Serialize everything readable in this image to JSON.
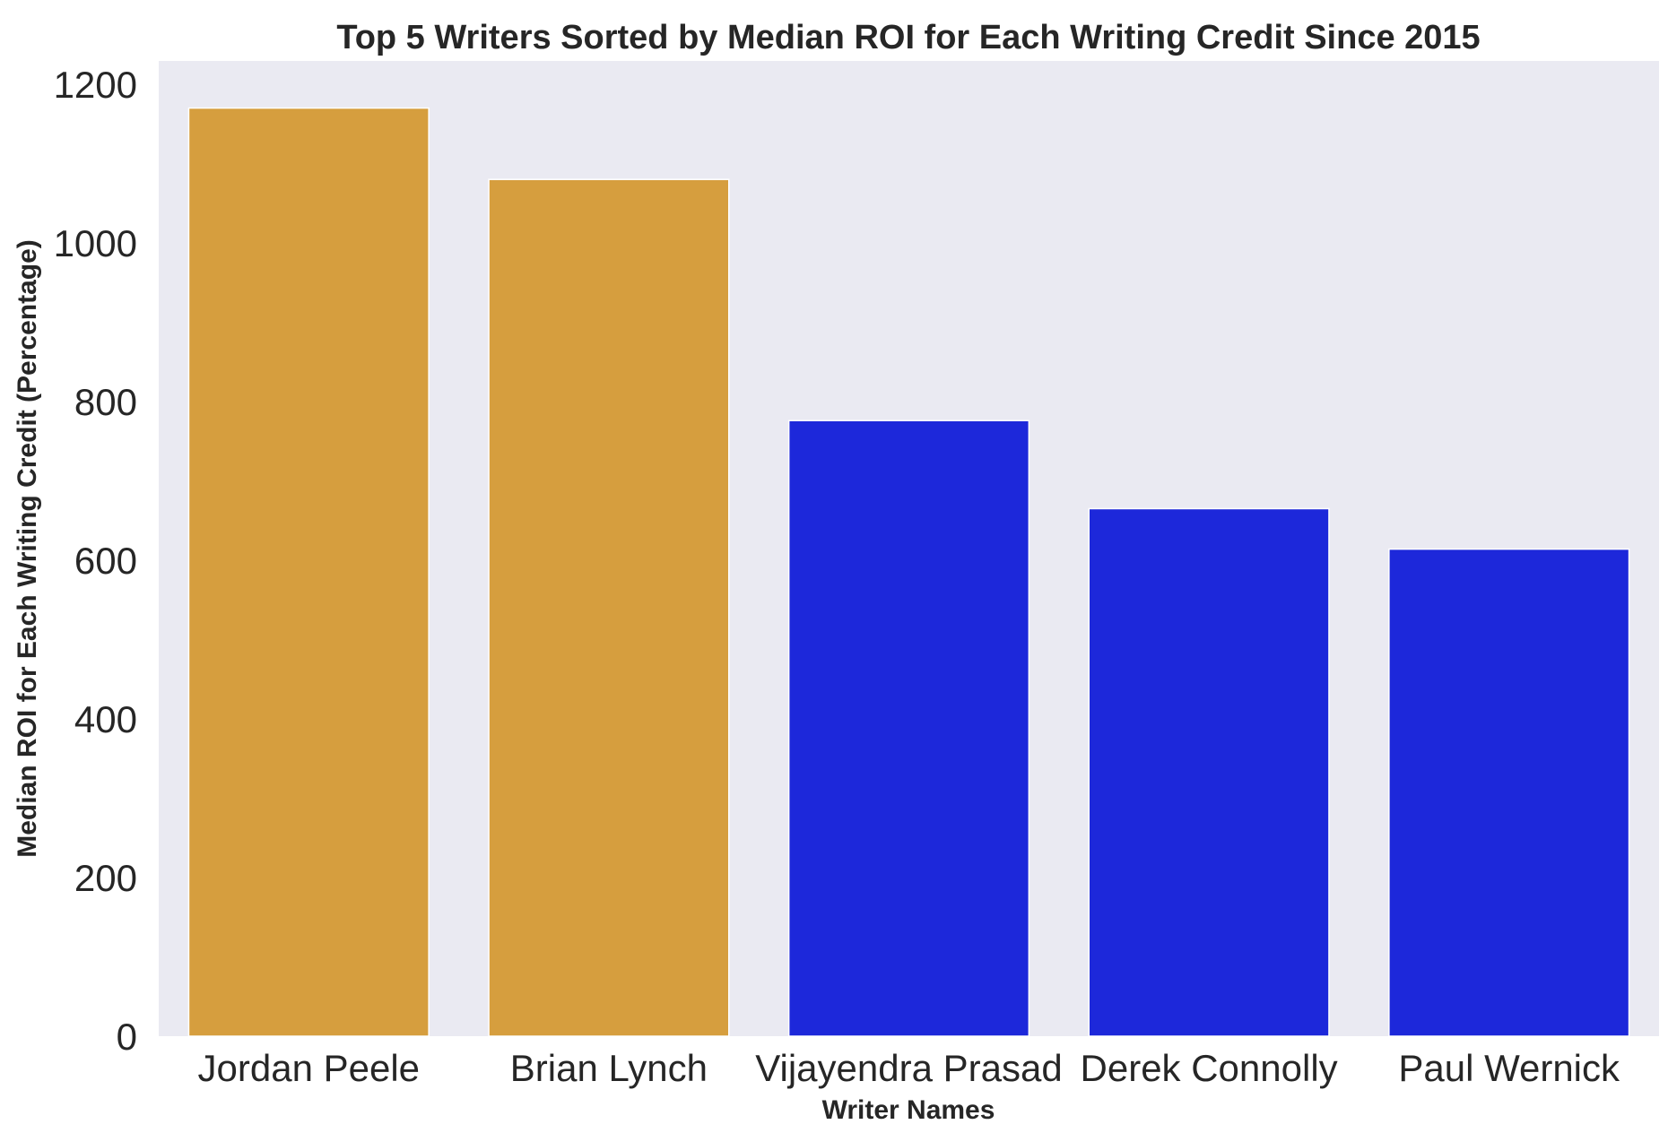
{
  "chart_data": {
    "type": "bar",
    "title": "Top 5 Writers Sorted by Median ROI for Each Writing Credit Since 2015",
    "xlabel": "Writer Names",
    "ylabel": "Median ROI for Each Writing Credit (Percentage)",
    "categories": [
      "Jordan Peele",
      "Brian Lynch",
      "Vijayendra Prasad",
      "Derek Connolly",
      "Paul Wernick"
    ],
    "values": [
      1170,
      1080,
      776,
      665,
      614
    ],
    "colors": [
      "#d69e3e",
      "#d69e3e",
      "#1d28da",
      "#1d28da",
      "#1d28da"
    ],
    "ylim": [
      0,
      1200
    ],
    "yticks": [
      0,
      200,
      400,
      600,
      800,
      1000,
      1200
    ],
    "grid": false,
    "background": "#eaeaf2"
  }
}
